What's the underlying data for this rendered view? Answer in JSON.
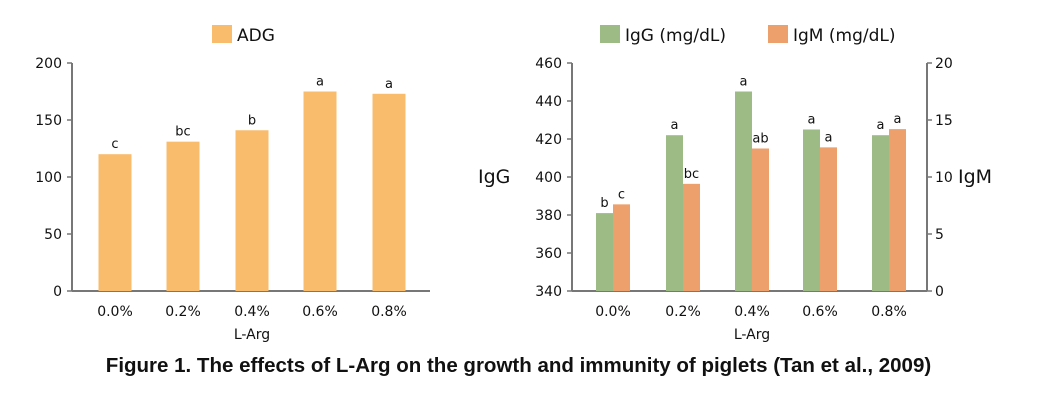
{
  "caption": "Figure 1. The effects of L-Arg on the growth and immunity of piglets (Tan et al., 2009)",
  "chart_data": [
    {
      "type": "bar",
      "categories": [
        "0.0%",
        "0.2%",
        "0.4%",
        "0.6%",
        "0.8%"
      ],
      "xlabel": "L-Arg",
      "ylabel": "",
      "ylim": [
        0,
        200
      ],
      "yticks": [
        0,
        50,
        100,
        150,
        200
      ],
      "legend": "top",
      "grid": false,
      "series": [
        {
          "name": "ADG",
          "color": "#F8BC6C",
          "values": [
            120,
            131,
            141,
            175,
            173
          ],
          "labels": [
            "c",
            "bc",
            "b",
            "a",
            "a"
          ]
        }
      ]
    },
    {
      "type": "bar",
      "categories": [
        "0.0%",
        "0.2%",
        "0.4%",
        "0.6%",
        "0.8%"
      ],
      "xlabel": "L-Arg",
      "ylabel": "IgG",
      "y2label": "IgM",
      "ylim": [
        340,
        460
      ],
      "yticks": [
        340,
        360,
        380,
        400,
        420,
        440,
        460
      ],
      "y2lim": [
        0,
        20
      ],
      "y2ticks": [
        0,
        5,
        10,
        15,
        20
      ],
      "legend": "top",
      "grid": false,
      "series": [
        {
          "name": "IgG (mg/dL)",
          "axis": "left",
          "color": "#9DBB85",
          "values": [
            381,
            422,
            445,
            425,
            422
          ],
          "labels": [
            "b",
            "a",
            "a",
            "a",
            "a"
          ]
        },
        {
          "name": "IgM (mg/dL)",
          "axis": "right",
          "color": "#EEA06C",
          "values": [
            7.6,
            9.4,
            12.5,
            12.6,
            14.2
          ],
          "labels": [
            "c",
            "bc",
            "ab",
            "a",
            "a"
          ]
        }
      ]
    }
  ]
}
